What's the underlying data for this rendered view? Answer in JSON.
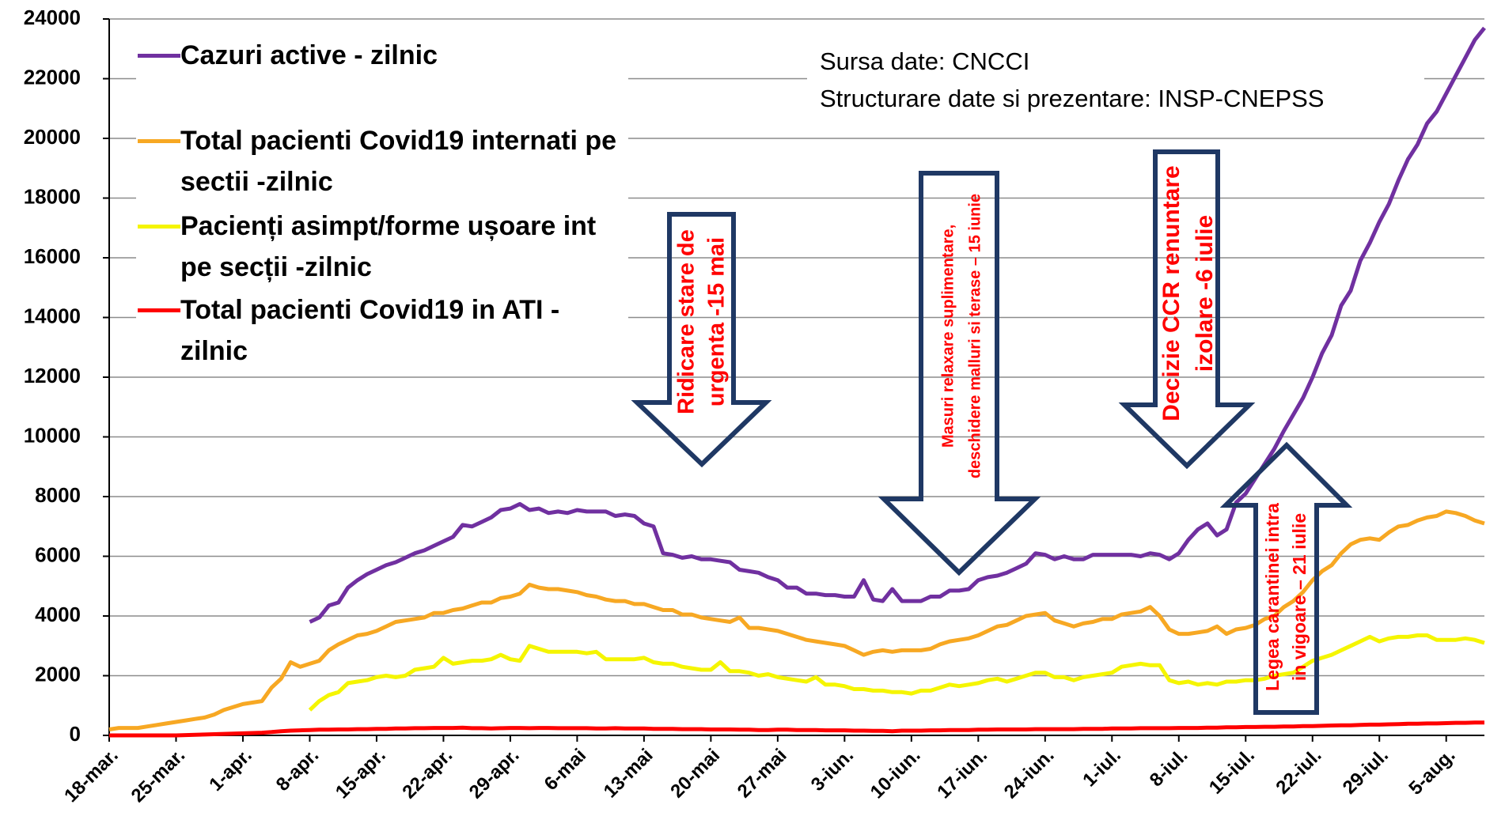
{
  "chart_data": {
    "type": "line",
    "ylim": [
      0,
      24000
    ],
    "yticks": [
      0,
      2000,
      4000,
      6000,
      8000,
      10000,
      12000,
      14000,
      16000,
      18000,
      20000,
      22000,
      24000
    ],
    "grid": true,
    "categories": [
      "18-mar.",
      null,
      null,
      null,
      null,
      null,
      null,
      "25-mar.",
      null,
      null,
      null,
      null,
      null,
      null,
      "1-apr.",
      null,
      null,
      null,
      null,
      null,
      null,
      "8-apr.",
      null,
      null,
      null,
      null,
      null,
      null,
      "15-apr.",
      null,
      null,
      null,
      null,
      null,
      null,
      "22-apr.",
      null,
      null,
      null,
      null,
      null,
      null,
      "29-apr.",
      null,
      null,
      null,
      null,
      null,
      null,
      "6-mai",
      null,
      null,
      null,
      null,
      null,
      null,
      "13-mai",
      null,
      null,
      null,
      null,
      null,
      null,
      "20-mai",
      null,
      null,
      null,
      null,
      null,
      null,
      "27-mai",
      null,
      null,
      null,
      null,
      null,
      null,
      "3-iun.",
      null,
      null,
      null,
      null,
      null,
      null,
      "10-iun.",
      null,
      null,
      null,
      null,
      null,
      null,
      "17-iun.",
      null,
      null,
      null,
      null,
      null,
      null,
      "24-iun.",
      null,
      null,
      null,
      null,
      null,
      null,
      "1-iul.",
      null,
      null,
      null,
      null,
      null,
      null,
      "8-iul.",
      null,
      null,
      null,
      null,
      null,
      null,
      "15-iul.",
      null,
      null,
      null,
      null,
      null,
      null,
      "22-iul.",
      null,
      null,
      null,
      null,
      null,
      null,
      "29-iul.",
      null,
      null,
      null,
      null,
      null,
      null,
      "5-aug.",
      null,
      null,
      null,
      null
    ],
    "series": [
      {
        "name": "Cazuri active - zilnic",
        "color": "#7030a0",
        "values": [
          null,
          null,
          null,
          null,
          null,
          null,
          null,
          null,
          null,
          null,
          null,
          null,
          null,
          null,
          null,
          null,
          null,
          null,
          null,
          null,
          null,
          3800,
          3950,
          4350,
          4450,
          4950,
          5200,
          5400,
          5550,
          5700,
          5800,
          5950,
          6100,
          6200,
          6350,
          6500,
          6650,
          7050,
          7000,
          7150,
          7300,
          7550,
          7600,
          7750,
          7550,
          7600,
          7450,
          7500,
          7450,
          7550,
          7500,
          7500,
          7500,
          7350,
          7400,
          7350,
          7100,
          7000,
          6100,
          6050,
          5950,
          6000,
          5900,
          5900,
          5850,
          5800,
          5550,
          5500,
          5450,
          5300,
          5200,
          4950,
          4950,
          4750,
          4750,
          4700,
          4700,
          4650,
          4650,
          5200,
          4550,
          4500,
          4900,
          4500,
          4500,
          4500,
          4650,
          4650,
          4850,
          4850,
          4900,
          5200,
          5300,
          5350,
          5450,
          5600,
          5750,
          6100,
          6050,
          5900,
          6000,
          5900,
          5900,
          6050,
          6050,
          6050,
          6050,
          6050,
          6000,
          6100,
          6050,
          5900,
          6100,
          6550,
          6900,
          7100,
          6700,
          6900,
          7800,
          8100,
          8600,
          9100,
          9600,
          10200,
          10750,
          11300,
          12000,
          12800,
          13400,
          14400,
          14900,
          15900,
          16500,
          17200,
          17800,
          18600,
          19300,
          19800,
          20500,
          20900,
          21500,
          22100,
          22700,
          23300,
          23700
        ]
      },
      {
        "name": "Total pacienti Covid19 internati pe sectii -zilnic",
        "color": "#f7a823",
        "values": [
          200,
          250,
          250,
          250,
          300,
          350,
          400,
          450,
          500,
          550,
          600,
          700,
          850,
          950,
          1050,
          1100,
          1150,
          1600,
          1900,
          2450,
          2300,
          2400,
          2500,
          2850,
          3050,
          3200,
          3350,
          3400,
          3500,
          3650,
          3800,
          3850,
          3900,
          3950,
          4100,
          4100,
          4200,
          4250,
          4350,
          4450,
          4450,
          4600,
          4650,
          4750,
          5050,
          4950,
          4900,
          4900,
          4850,
          4800,
          4700,
          4650,
          4550,
          4500,
          4500,
          4400,
          4400,
          4300,
          4200,
          4200,
          4050,
          4050,
          3950,
          3900,
          3850,
          3800,
          3950,
          3600,
          3600,
          3550,
          3500,
          3400,
          3300,
          3200,
          3150,
          3100,
          3050,
          3000,
          2850,
          2700,
          2800,
          2850,
          2800,
          2850,
          2850,
          2850,
          2900,
          3050,
          3150,
          3200,
          3250,
          3350,
          3500,
          3650,
          3700,
          3850,
          4000,
          4050,
          4100,
          3850,
          3750,
          3650,
          3750,
          3800,
          3900,
          3900,
          4050,
          4100,
          4150,
          4300,
          4000,
          3550,
          3400,
          3400,
          3450,
          3500,
          3650,
          3400,
          3550,
          3600,
          3700,
          3900,
          4000,
          4300,
          4500,
          4800,
          5200,
          5500,
          5700,
          6100,
          6400,
          6550,
          6600,
          6550,
          6800,
          7000,
          7050,
          7200,
          7300,
          7350,
          7500,
          7450,
          7350,
          7200,
          7100
        ]
      },
      {
        "name": "Pacienți asimpt/forme ușoare int pe secții -zilnic",
        "color": "#f5f500",
        "values": [
          null,
          null,
          null,
          null,
          null,
          null,
          null,
          null,
          null,
          null,
          null,
          null,
          null,
          null,
          null,
          null,
          null,
          null,
          null,
          null,
          null,
          850,
          1150,
          1350,
          1450,
          1750,
          1800,
          1850,
          1950,
          2000,
          1950,
          2000,
          2200,
          2250,
          2300,
          2600,
          2400,
          2450,
          2500,
          2500,
          2550,
          2700,
          2550,
          2500,
          3000,
          2900,
          2800,
          2800,
          2800,
          2800,
          2750,
          2800,
          2550,
          2550,
          2550,
          2550,
          2600,
          2450,
          2400,
          2400,
          2300,
          2250,
          2200,
          2200,
          2450,
          2150,
          2150,
          2100,
          2000,
          2050,
          1950,
          1900,
          1850,
          1800,
          1950,
          1700,
          1700,
          1650,
          1550,
          1550,
          1500,
          1500,
          1450,
          1450,
          1400,
          1500,
          1500,
          1600,
          1700,
          1650,
          1700,
          1750,
          1850,
          1900,
          1800,
          1900,
          2000,
          2100,
          2100,
          1950,
          1950,
          1850,
          1950,
          2000,
          2050,
          2100,
          2300,
          2350,
          2400,
          2350,
          2350,
          1850,
          1750,
          1800,
          1700,
          1750,
          1700,
          1800,
          1800,
          1850,
          1850,
          1900,
          2000,
          2050,
          2100,
          2300,
          2500,
          2600,
          2700,
          2850,
          3000,
          3150,
          3300,
          3150,
          3250,
          3300,
          3300,
          3350,
          3350,
          3200,
          3200,
          3200,
          3250,
          3200,
          3100
        ]
      },
      {
        "name": "Total pacienti Covid19 in ATI - zilnic",
        "color": "#ff0000",
        "values": [
          0,
          0,
          0,
          0,
          0,
          0,
          0,
          0,
          10,
          20,
          30,
          40,
          50,
          60,
          70,
          80,
          90,
          110,
          140,
          160,
          170,
          180,
          190,
          190,
          200,
          200,
          210,
          210,
          220,
          220,
          230,
          230,
          240,
          240,
          250,
          250,
          250,
          260,
          240,
          240,
          230,
          240,
          250,
          250,
          240,
          250,
          250,
          240,
          240,
          240,
          240,
          230,
          230,
          240,
          230,
          230,
          230,
          220,
          220,
          220,
          210,
          210,
          210,
          200,
          200,
          200,
          190,
          190,
          180,
          180,
          190,
          190,
          180,
          180,
          180,
          170,
          170,
          170,
          160,
          160,
          150,
          150,
          140,
          160,
          160,
          160,
          170,
          170,
          180,
          180,
          180,
          190,
          190,
          200,
          200,
          200,
          200,
          210,
          210,
          210,
          210,
          210,
          220,
          220,
          220,
          230,
          230,
          230,
          240,
          240,
          240,
          240,
          250,
          250,
          250,
          260,
          260,
          270,
          270,
          280,
          280,
          290,
          290,
          300,
          300,
          310,
          310,
          320,
          330,
          340,
          340,
          350,
          360,
          360,
          370,
          380,
          390,
          390,
          400,
          400,
          410,
          420,
          420,
          430,
          430
        ]
      }
    ],
    "source": [
      "Sursa date: CNCCI",
      "Structurare date si prezentare: INSP-CNEPSS"
    ],
    "annotations": [
      [
        "Ridicare stare de",
        "urgenta -15 mai"
      ],
      [
        "Masuri relaxare suplimentare,",
        "deschidere malluri si terase – 15 iunie"
      ],
      [
        "Decizie CCR renuntare",
        "izolare -6 iulie"
      ],
      [
        "Legea carantinei intra",
        "in vigoare – 21 iulie"
      ]
    ]
  }
}
